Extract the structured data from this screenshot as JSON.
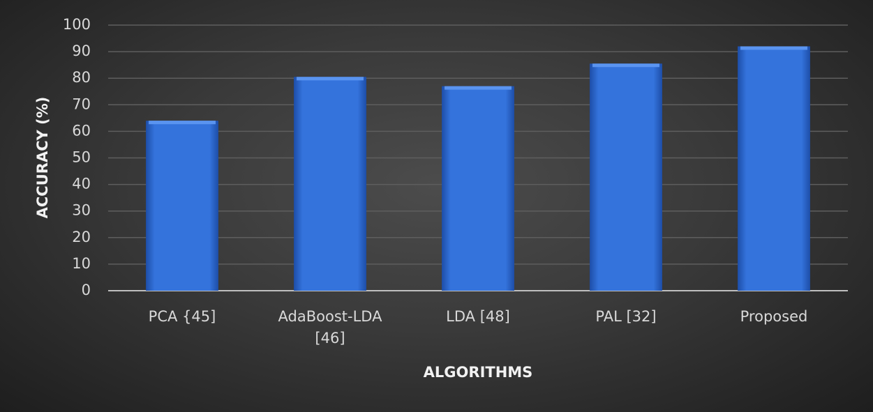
{
  "chart_data": {
    "type": "bar",
    "x_label": "ALGORITHMS",
    "y_label": "ACCURACY (%)",
    "categories": [
      "PCA {45]",
      "AdaBoost-LDA [46]",
      "LDA [48]",
      "PAL [32]",
      "Proposed"
    ],
    "values": [
      64,
      80.5,
      77,
      85.5,
      92
    ],
    "color": "#3473dc",
    "ylim": [
      0,
      100
    ],
    "yticks": [
      0,
      10,
      20,
      30,
      40,
      50,
      60,
      70,
      80,
      90,
      100
    ],
    "grid": true
  }
}
